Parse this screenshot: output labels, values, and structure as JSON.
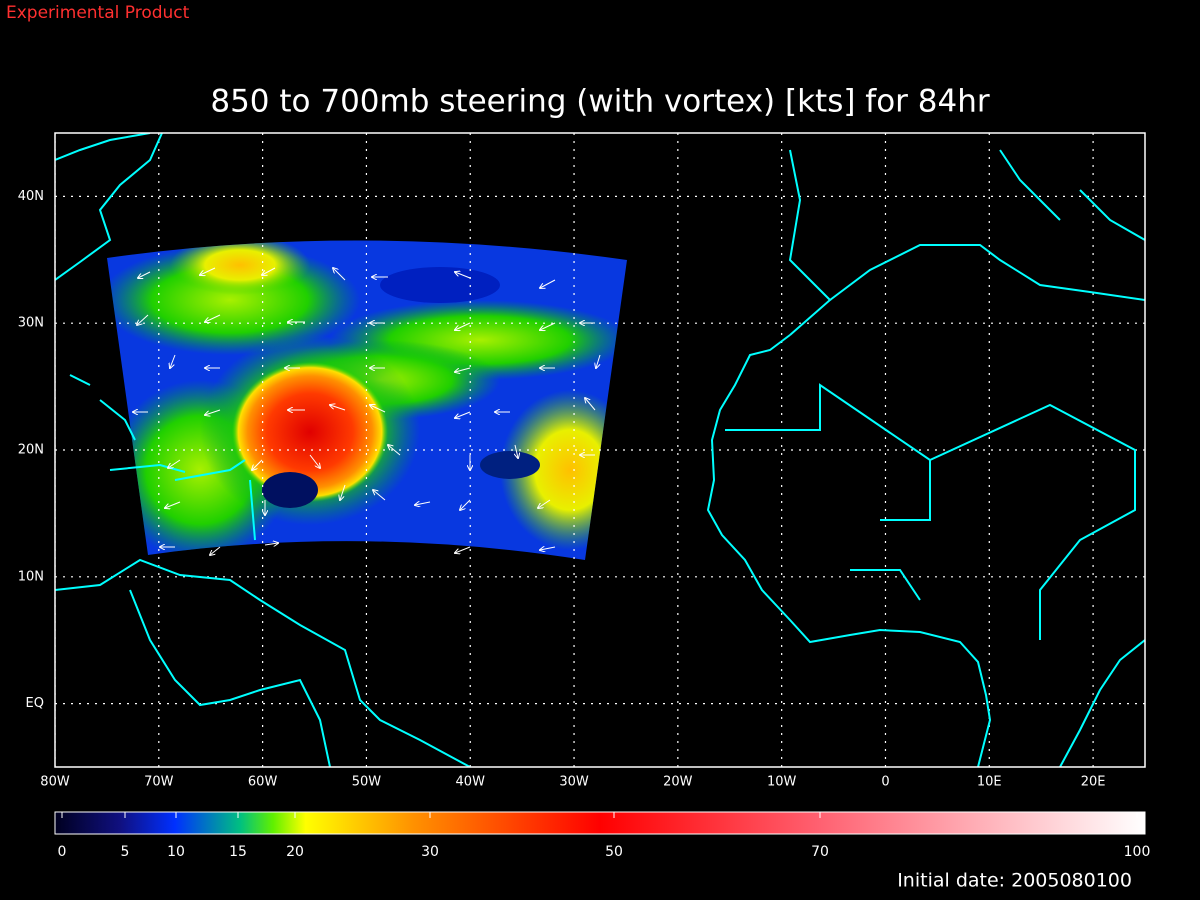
{
  "header": {
    "tag": "Experimental Product",
    "title": "850 to 700mb steering (with vortex) [kts] for 84hr"
  },
  "map": {
    "xlim": [
      -80,
      25
    ],
    "ylim": [
      -5,
      45
    ],
    "xticks": [
      {
        "value": -80,
        "label": "80W"
      },
      {
        "value": -70,
        "label": "70W"
      },
      {
        "value": -60,
        "label": "60W"
      },
      {
        "value": -50,
        "label": "50W"
      },
      {
        "value": -40,
        "label": "40W"
      },
      {
        "value": -30,
        "label": "30W"
      },
      {
        "value": -20,
        "label": "20W"
      },
      {
        "value": -10,
        "label": "10W"
      },
      0,
      {
        "value": 10,
        "label": "10E"
      },
      {
        "value": 20,
        "label": "20E"
      }
    ],
    "yticks": [
      {
        "value": 0,
        "label": "EQ"
      },
      {
        "value": 10,
        "label": "10N"
      },
      {
        "value": 20,
        "label": "20N"
      },
      {
        "value": 30,
        "label": "30N"
      },
      {
        "value": 40,
        "label": "40N"
      }
    ]
  },
  "colorbar": {
    "ticks": [
      0,
      5,
      10,
      15,
      20,
      30,
      50,
      70,
      100
    ]
  },
  "footer": {
    "initial_date": "Initial date: 2005080100"
  }
}
